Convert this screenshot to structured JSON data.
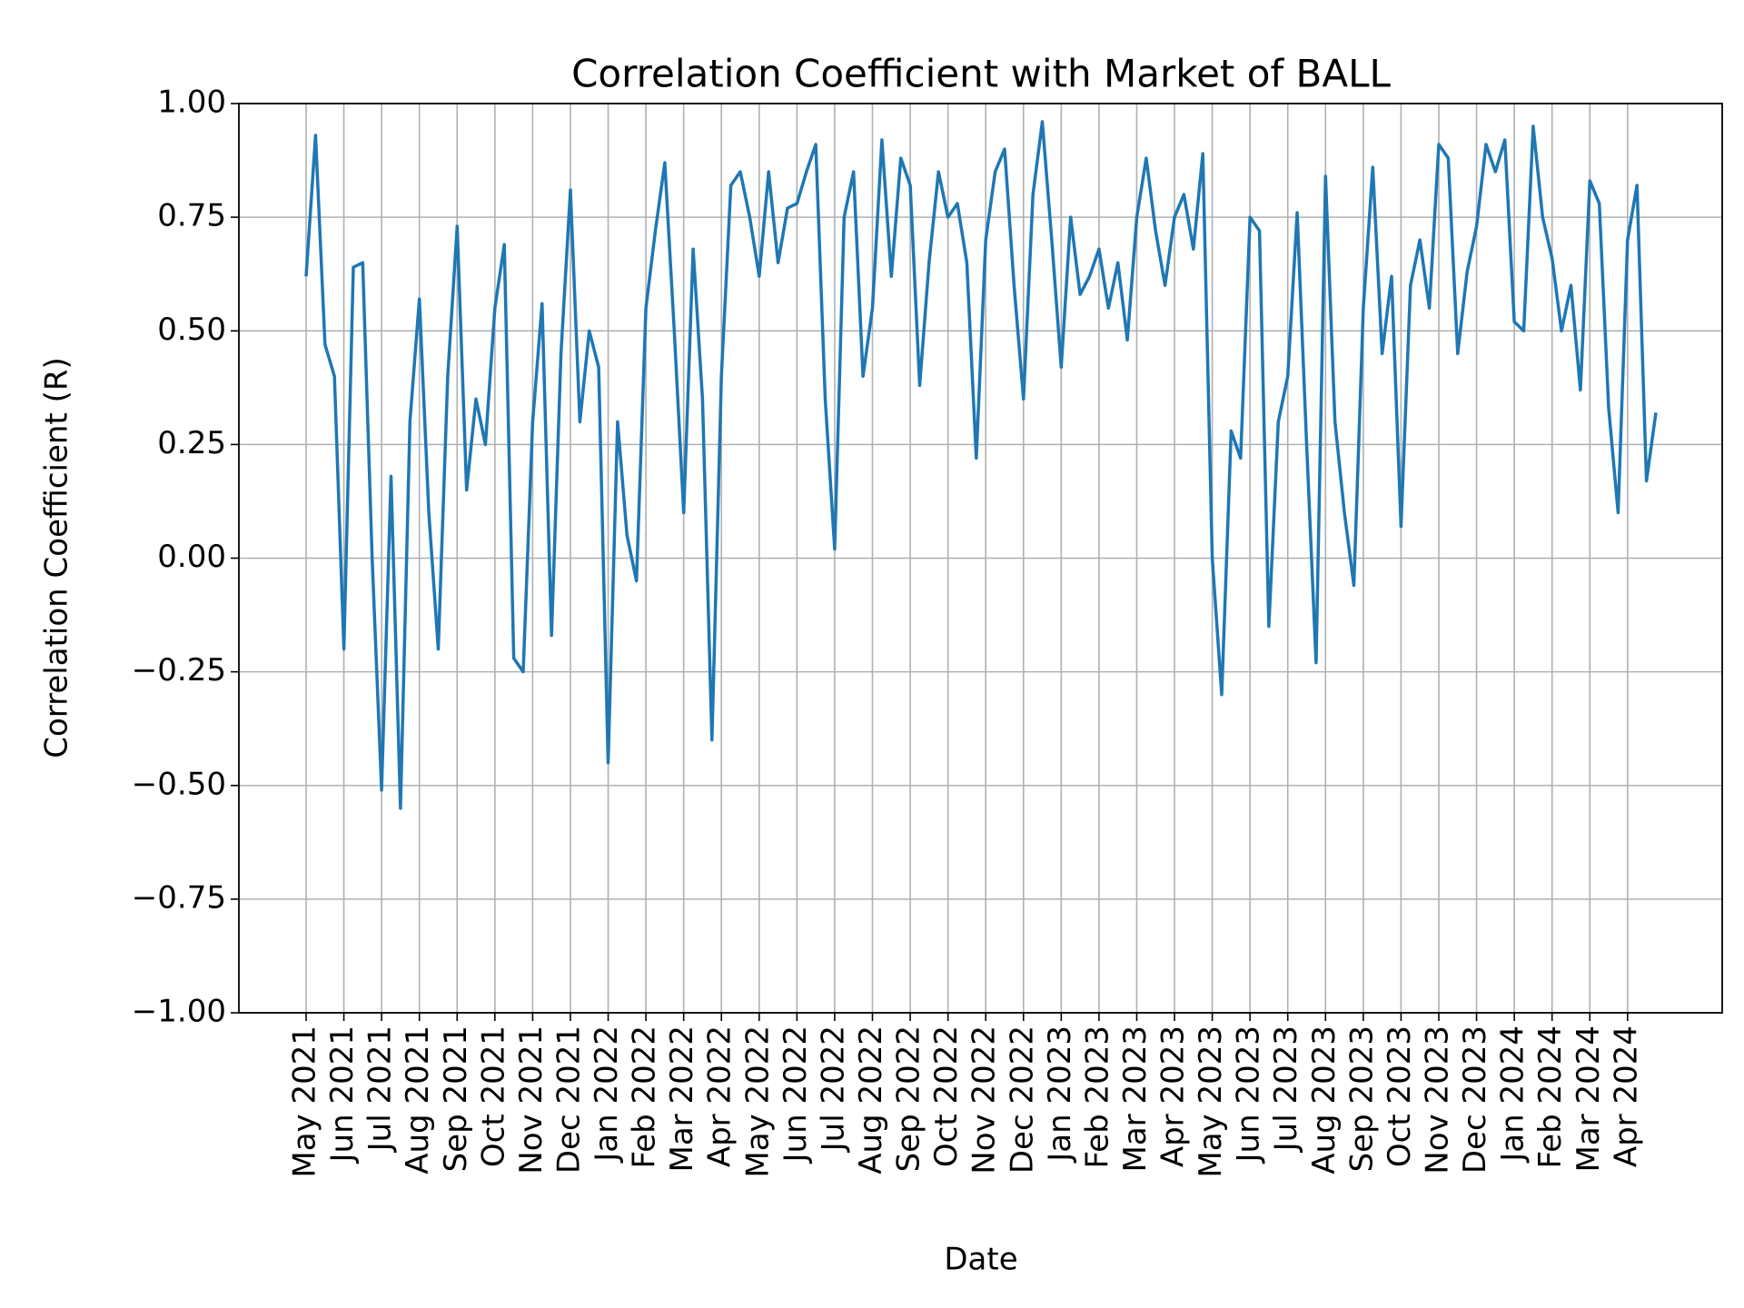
{
  "chart_data": {
    "type": "line",
    "title": "Correlation Coefficient with Market of BALL",
    "x_label": "Date",
    "y_label": "Correlation Coefficient (R)",
    "grid": true,
    "categories": [
      "May 2021",
      null,
      null,
      null,
      "Jun 2021",
      null,
      null,
      null,
      "Jul 2021",
      null,
      null,
      null,
      "Aug 2021",
      null,
      null,
      null,
      "Sep 2021",
      null,
      null,
      null,
      "Oct 2021",
      null,
      null,
      null,
      "Nov 2021",
      null,
      null,
      null,
      "Dec 2021",
      null,
      null,
      null,
      "Jan 2022",
      null,
      null,
      null,
      "Feb 2022",
      null,
      null,
      null,
      "Mar 2022",
      null,
      null,
      null,
      "Apr 2022",
      null,
      null,
      null,
      "May 2022",
      null,
      null,
      null,
      "Jun 2022",
      null,
      null,
      null,
      "Jul 2022",
      null,
      null,
      null,
      "Aug 2022",
      null,
      null,
      null,
      "Sep 2022",
      null,
      null,
      null,
      "Oct 2022",
      null,
      null,
      null,
      "Nov 2022",
      null,
      null,
      null,
      "Dec 2022",
      null,
      null,
      null,
      "Jan 2023",
      null,
      null,
      null,
      "Feb 2023",
      null,
      null,
      null,
      "Mar 2023",
      null,
      null,
      null,
      "Apr 2023",
      null,
      null,
      null,
      "May 2023",
      null,
      null,
      null,
      "Jun 2023",
      null,
      null,
      null,
      "Jul 2023",
      null,
      null,
      null,
      "Aug 2023",
      null,
      null,
      null,
      "Sep 2023",
      null,
      null,
      null,
      "Oct 2023",
      null,
      null,
      null,
      "Nov 2023",
      null,
      null,
      null,
      "Dec 2023",
      null,
      null,
      null,
      "Jan 2024",
      null,
      null,
      null,
      "Feb 2024",
      null,
      null,
      null,
      "Mar 2024",
      null,
      null,
      null,
      "Apr 2024",
      null,
      null,
      null
    ],
    "series": [
      {
        "name": "R",
        "color": "#1f77b4",
        "values": [
          0.62,
          0.93,
          0.47,
          0.4,
          -0.2,
          0.64,
          0.65,
          0.0,
          -0.51,
          0.18,
          -0.55,
          0.3,
          0.57,
          0.1,
          -0.2,
          0.4,
          0.73,
          0.15,
          0.35,
          0.25,
          0.55,
          0.69,
          -0.22,
          -0.25,
          0.3,
          0.56,
          -0.17,
          0.45,
          0.81,
          0.3,
          0.5,
          0.42,
          -0.45,
          0.3,
          0.05,
          -0.05,
          0.55,
          0.72,
          0.87,
          0.5,
          0.1,
          0.68,
          0.35,
          -0.4,
          0.4,
          0.82,
          0.85,
          0.75,
          0.62,
          0.85,
          0.65,
          0.77,
          0.78,
          0.85,
          0.91,
          0.35,
          0.02,
          0.75,
          0.85,
          0.4,
          0.55,
          0.92,
          0.62,
          0.88,
          0.82,
          0.38,
          0.65,
          0.85,
          0.75,
          0.78,
          0.65,
          0.22,
          0.7,
          0.85,
          0.9,
          0.6,
          0.35,
          0.8,
          0.96,
          0.7,
          0.42,
          0.75,
          0.58,
          0.62,
          0.68,
          0.55,
          0.65,
          0.48,
          0.75,
          0.88,
          0.72,
          0.6,
          0.75,
          0.8,
          0.68,
          0.89,
          0.0,
          -0.3,
          0.28,
          0.22,
          0.75,
          0.72,
          -0.15,
          0.3,
          0.4,
          0.76,
          0.25,
          -0.23,
          0.84,
          0.3,
          0.1,
          -0.06,
          0.55,
          0.86,
          0.45,
          0.62,
          0.07,
          0.6,
          0.7,
          0.55,
          0.91,
          0.88,
          0.45,
          0.63,
          0.73,
          0.91,
          0.85,
          0.92,
          0.52,
          0.5,
          0.95,
          0.75,
          0.66,
          0.5,
          0.6,
          0.37,
          0.83,
          0.78,
          0.33,
          0.1,
          0.7,
          0.82,
          0.17,
          0.32
        ]
      }
    ],
    "ylim": [
      -1,
      1
    ],
    "yticks": [
      {
        "value": -1,
        "label": "−1.00"
      },
      {
        "value": -0.75,
        "label": "−0.75"
      },
      {
        "value": -0.5,
        "label": "−0.50"
      },
      {
        "value": -0.25,
        "label": "−0.25"
      },
      {
        "value": 0,
        "label": "0.00"
      },
      {
        "value": 0.25,
        "label": "0.25"
      },
      {
        "value": 0.5,
        "label": "0.50"
      },
      {
        "value": 0.75,
        "label": "0.75"
      },
      {
        "value": 1,
        "label": "1.00"
      }
    ]
  }
}
